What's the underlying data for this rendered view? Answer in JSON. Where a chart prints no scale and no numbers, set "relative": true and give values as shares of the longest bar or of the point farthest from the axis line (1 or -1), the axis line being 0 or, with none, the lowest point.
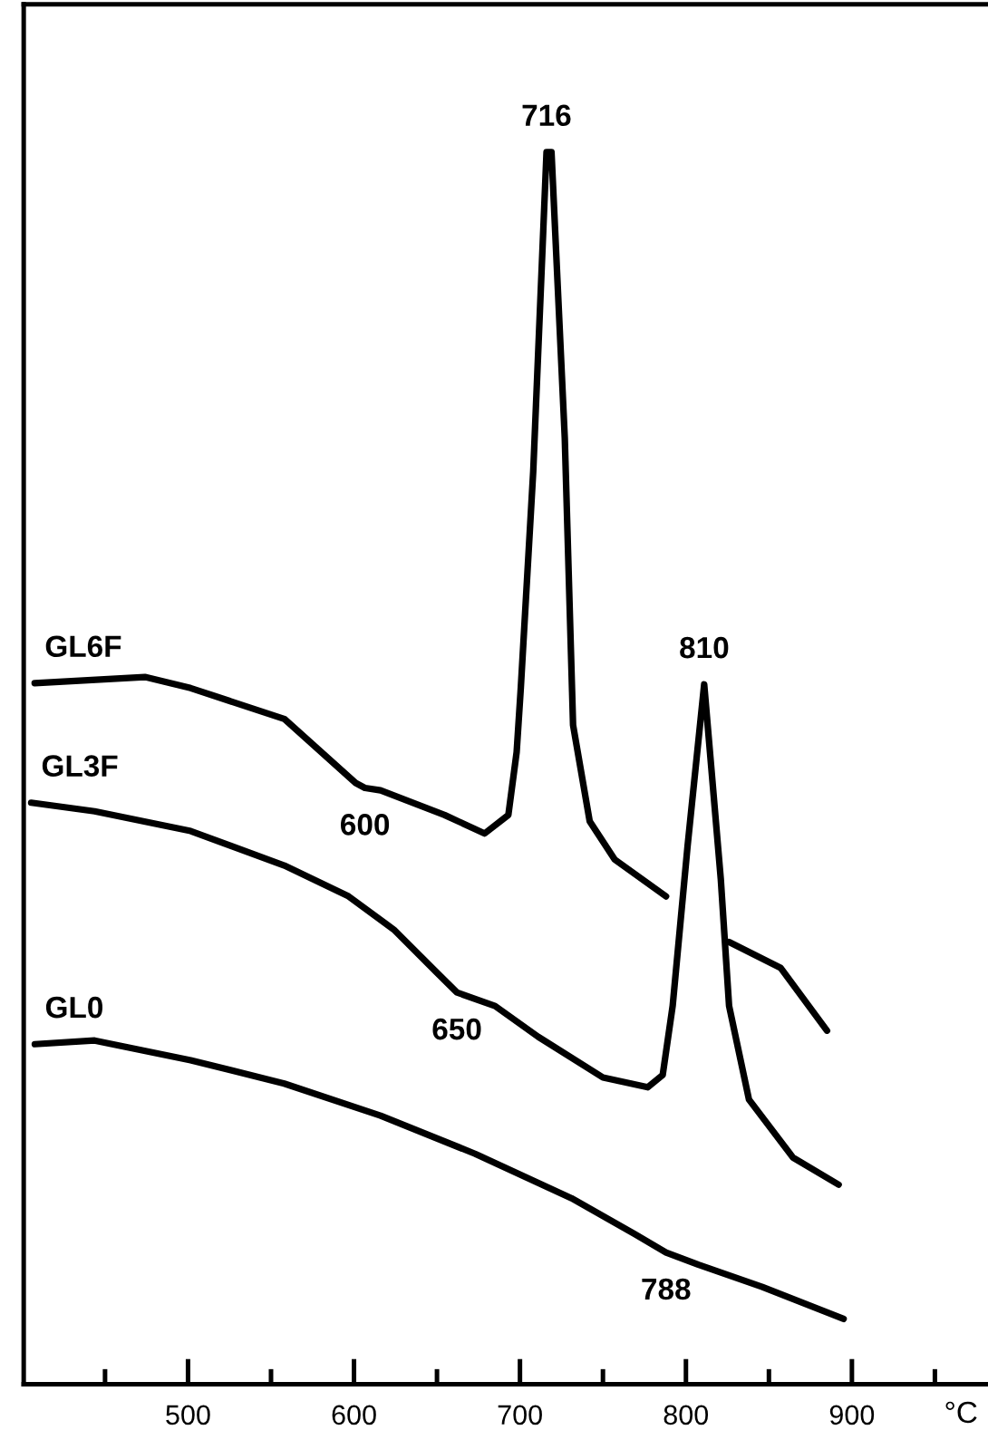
{
  "chart_data": {
    "type": "line",
    "relative": true,
    "xlabel": "°C",
    "xlim": [
      401,
      982
    ],
    "xticks": [
      {
        "value": 450,
        "label": null
      },
      500,
      {
        "value": 550,
        "label": null
      },
      600,
      {
        "value": 650,
        "label": null
      },
      700,
      {
        "value": 750,
        "label": null
      },
      800,
      {
        "value": 850,
        "label": null
      },
      900,
      {
        "value": 950,
        "label": null
      }
    ],
    "legend": false,
    "grid": false,
    "marker": "none",
    "line_style": "solid",
    "series": [
      {
        "name": "GL6F",
        "color": "#000000",
        "x": [
          407.6,
          474,
          501.6,
          558,
          601,
          606.6,
          616,
          654.6,
          678.7,
          693,
          698,
          700.5,
          708,
          716,
          719,
          727,
          732,
          742,
          757,
          788,
          800,
          826,
          857,
          885
        ],
        "values": [
          0.569,
          0.574,
          0.565,
          0.54,
          0.488,
          0.484,
          0.482,
          0.462,
          0.447,
          0.462,
          0.513,
          0.565,
          0.741,
          1,
          1,
          0.768,
          0.535,
          0.457,
          0.426,
          0.396,
          null,
          0.359,
          0.338,
          0.287
        ]
      },
      {
        "name": "GL3F",
        "color": "#000000",
        "x": [
          405.5,
          443.7,
          501.6,
          558,
          596.7,
          624,
          650,
          662,
          685,
          711,
          750,
          777,
          786,
          792,
          801,
          811,
          821,
          826,
          838,
          864.5,
          892
        ],
        "values": [
          0.472,
          0.465,
          0.449,
          0.421,
          0.396,
          0.369,
          0.334,
          0.318,
          0.307,
          0.282,
          0.249,
          0.241,
          0.251,
          0.307,
          0.437,
          0.568,
          0.41,
          0.307,
          0.231,
          0.184,
          0.162
        ]
      },
      {
        "name": "GL0",
        "color": "#000000",
        "x": [
          407.7,
          443.7,
          501.6,
          558,
          616,
          673,
          731,
          769,
          788,
          807.6,
          846,
          895
        ],
        "values": [
          0.276,
          0.279,
          0.263,
          0.244,
          0.218,
          0.187,
          0.151,
          0.122,
          0.107,
          0.097,
          0.079,
          0.053
        ]
      }
    ],
    "annotations": [
      {
        "text": "716",
        "x": 716,
        "y": 1
      },
      {
        "text": "810",
        "x": 811,
        "y": 0.568
      },
      {
        "text": "600",
        "x": 606.6,
        "y": 0.484
      },
      {
        "text": "650",
        "x": 662,
        "y": 0.318
      },
      {
        "text": "788",
        "x": 788,
        "y": 0.107
      }
    ]
  }
}
